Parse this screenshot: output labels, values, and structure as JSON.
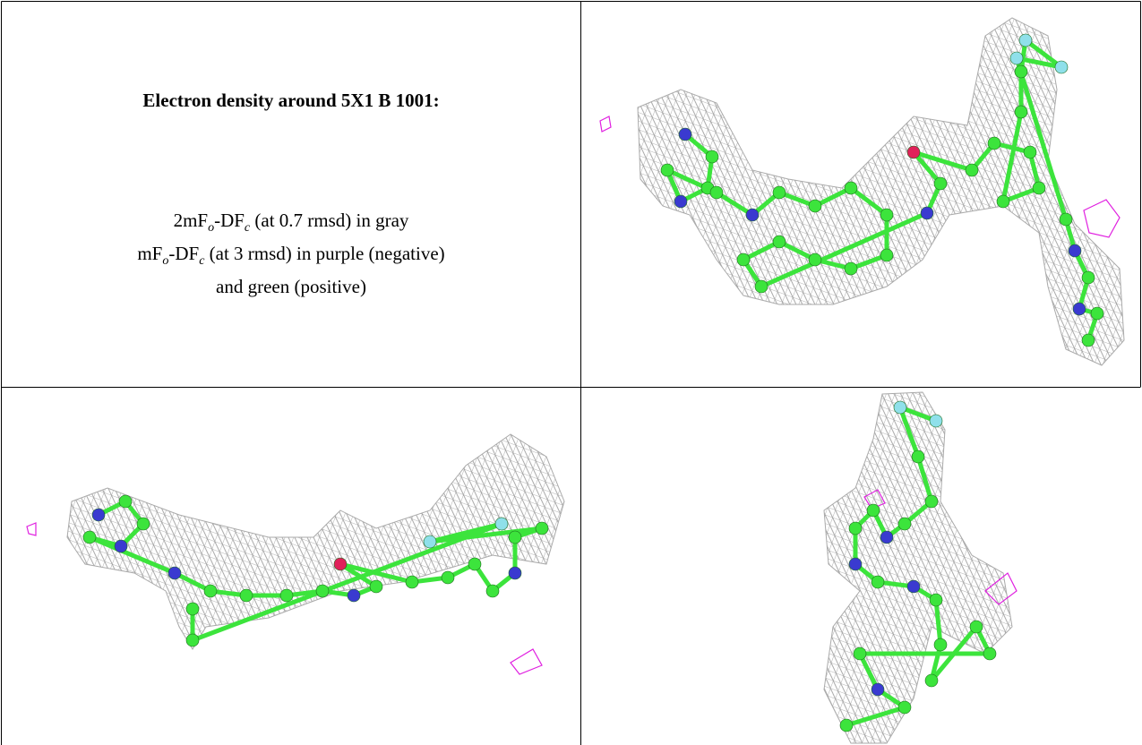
{
  "title": "Electron density around 5X1 B 1001:",
  "legend": [
    [
      "2mF",
      "o",
      "-DF",
      "c",
      " (at 0.7 rmsd) in gray"
    ],
    [
      "mF",
      "o",
      "-DF",
      "c",
      " (at 3 rmsd) in purple (negative)"
    ],
    [
      "and green (positive)"
    ]
  ]
}
